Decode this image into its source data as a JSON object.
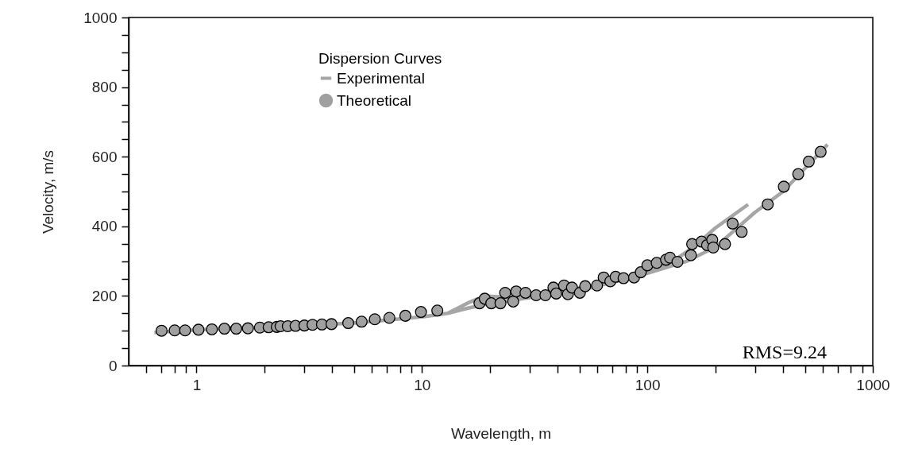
{
  "chart_data": {
    "type": "scatter",
    "xlabel": "Wavelength, m",
    "ylabel": "Velocity, m/s",
    "legend_title": "Dispersion Curves",
    "legend": "top left",
    "log": "x",
    "grid": false,
    "xlim": [
      0.5,
      1000
    ],
    "ylim": [
      0,
      1000
    ],
    "xticks": [
      {
        "value": 0.6,
        "label": null
      },
      {
        "value": 0.7,
        "label": null
      },
      {
        "value": 0.8,
        "label": null
      },
      {
        "value": 0.9,
        "label": null
      },
      1,
      {
        "value": 2,
        "label": null
      },
      {
        "value": 3,
        "label": null
      },
      {
        "value": 4,
        "label": null
      },
      {
        "value": 5,
        "label": null
      },
      {
        "value": 6,
        "label": null
      },
      {
        "value": 7,
        "label": null
      },
      {
        "value": 8,
        "label": null
      },
      {
        "value": 9,
        "label": null
      },
      10,
      {
        "value": 20,
        "label": null
      },
      {
        "value": 30,
        "label": null
      },
      {
        "value": 40,
        "label": null
      },
      {
        "value": 50,
        "label": null
      },
      {
        "value": 60,
        "label": null
      },
      {
        "value": 70,
        "label": null
      },
      {
        "value": 80,
        "label": null
      },
      {
        "value": 90,
        "label": null
      },
      100,
      {
        "value": 200,
        "label": null
      },
      {
        "value": 300,
        "label": null
      },
      {
        "value": 400,
        "label": null
      },
      {
        "value": 500,
        "label": null
      },
      {
        "value": 600,
        "label": null
      },
      {
        "value": 700,
        "label": null
      },
      {
        "value": 800,
        "label": null
      },
      {
        "value": 900,
        "label": null
      },
      1000
    ],
    "yticks": [
      0,
      {
        "value": 50,
        "label": null
      },
      {
        "value": 100,
        "label": null
      },
      {
        "value": 150,
        "label": null
      },
      200,
      {
        "value": 250,
        "label": null
      },
      {
        "value": 300,
        "label": null
      },
      {
        "value": 350,
        "label": null
      },
      400,
      {
        "value": 450,
        "label": null
      },
      {
        "value": 500,
        "label": null
      },
      {
        "value": 550,
        "label": null
      },
      600,
      {
        "value": 650,
        "label": null
      },
      {
        "value": 700,
        "label": null
      },
      {
        "value": 750,
        "label": null
      },
      800,
      {
        "value": 850,
        "label": null
      },
      {
        "value": 900,
        "label": null
      },
      {
        "value": 950,
        "label": null
      },
      1000
    ],
    "annotations": [
      "RMS=9.24"
    ],
    "series": [
      {
        "name": "Experimental",
        "type": "line",
        "color": "#a6a6a6",
        "line_style": "solid",
        "x": [
          0.65,
          1,
          2,
          5,
          10,
          13,
          16,
          19,
          25,
          40,
          70,
          100,
          130,
          160,
          200,
          280,
          null,
          13,
          16,
          20,
          30,
          50,
          100,
          150,
          200,
          300,
          400,
          630
        ],
        "values": [
          95,
          103,
          110,
          122,
          140,
          150,
          180,
          200,
          195,
          212,
          240,
          268,
          300,
          340,
          395,
          463,
          null,
          150,
          165,
          178,
          195,
          215,
          265,
          300,
          340,
          440,
          500,
          635
        ]
      },
      {
        "name": "Theoretical",
        "type": "scatter",
        "color": "#a0a0a0",
        "marker": "circle",
        "x": [
          0.7,
          0.8,
          0.89,
          1.02,
          1.17,
          1.33,
          1.5,
          1.69,
          1.91,
          2.09,
          2.27,
          2.36,
          2.54,
          2.75,
          3.01,
          3.27,
          3.6,
          3.97,
          4.71,
          5.4,
          6.18,
          7.17,
          8.44,
          9.9,
          11.7,
          18,
          19,
          20.3,
          22.3,
          23.4,
          25.4,
          26.2,
          28.8,
          32.1,
          35.3,
          38.3,
          39.4,
          42.7,
          44.4,
          46.3,
          50.2,
          53,
          59.8,
          64,
          68.5,
          72.3,
          78.4,
          87.3,
          93.5,
          100,
          110,
          121,
          126,
          136,
          156,
          158,
          174,
          184,
          194,
          196,
          221,
          239,
          262,
          342,
          403,
          467,
          520,
          587
        ],
        "values": [
          100,
          101,
          101,
          103,
          104,
          106,
          106,
          107,
          109,
          110,
          111,
          113,
          113,
          114,
          115,
          117,
          118,
          119,
          122,
          126,
          133,
          137,
          143,
          154,
          158,
          179,
          192,
          179,
          179,
          209,
          184,
          213,
          209,
          202,
          202,
          224,
          207,
          230,
          205,
          224,
          209,
          228,
          230,
          253,
          242,
          255,
          251,
          253,
          268,
          288,
          295,
          304,
          310,
          298,
          317,
          349,
          356,
          346,
          361,
          339,
          349,
          408,
          384,
          463,
          514,
          550,
          586,
          614
        ]
      }
    ]
  }
}
